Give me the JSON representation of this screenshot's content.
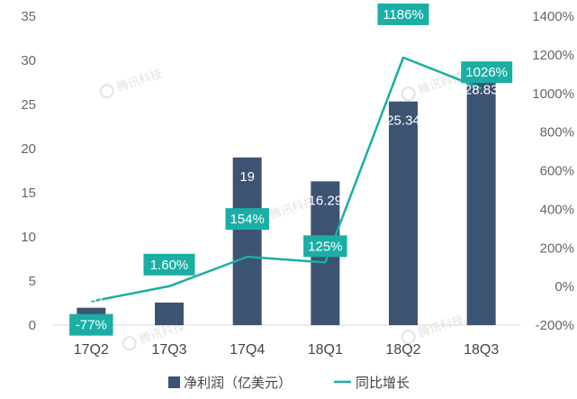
{
  "chart_data": {
    "type": "bar",
    "categories": [
      "17Q2",
      "17Q3",
      "17Q4",
      "18Q1",
      "18Q2",
      "18Q3"
    ],
    "series": [
      {
        "name": "净利润（亿美元）",
        "kind": "bar",
        "axis": "left",
        "color": "#3d5373",
        "values": [
          1.97,
          2.56,
          19,
          16.29,
          25.34,
          28.83
        ],
        "labels": [
          "1.97",
          "2.56",
          "19",
          "16.29",
          "25.34",
          "28.83"
        ]
      },
      {
        "name": "同比增长",
        "kind": "line",
        "axis": "right",
        "color": "#1aaea5",
        "values": [
          -77,
          1.6,
          154,
          125,
          1186,
          1026
        ],
        "labels": [
          "-77%",
          "1.60%",
          "154%",
          "125%",
          "1186%",
          "1026%"
        ]
      }
    ],
    "y_left": {
      "ylim": [
        0,
        35
      ],
      "ticks": [
        "0",
        "5",
        "10",
        "15",
        "20",
        "25",
        "30",
        "35"
      ]
    },
    "y_right": {
      "ylim": [
        -200,
        1400
      ],
      "ticks": [
        "-200%",
        "0%",
        "200%",
        "400%",
        "600%",
        "800%",
        "1000%",
        "1200%",
        "1400%"
      ]
    },
    "grid": false,
    "legend": "bottom",
    "watermark": "腾讯科技"
  }
}
